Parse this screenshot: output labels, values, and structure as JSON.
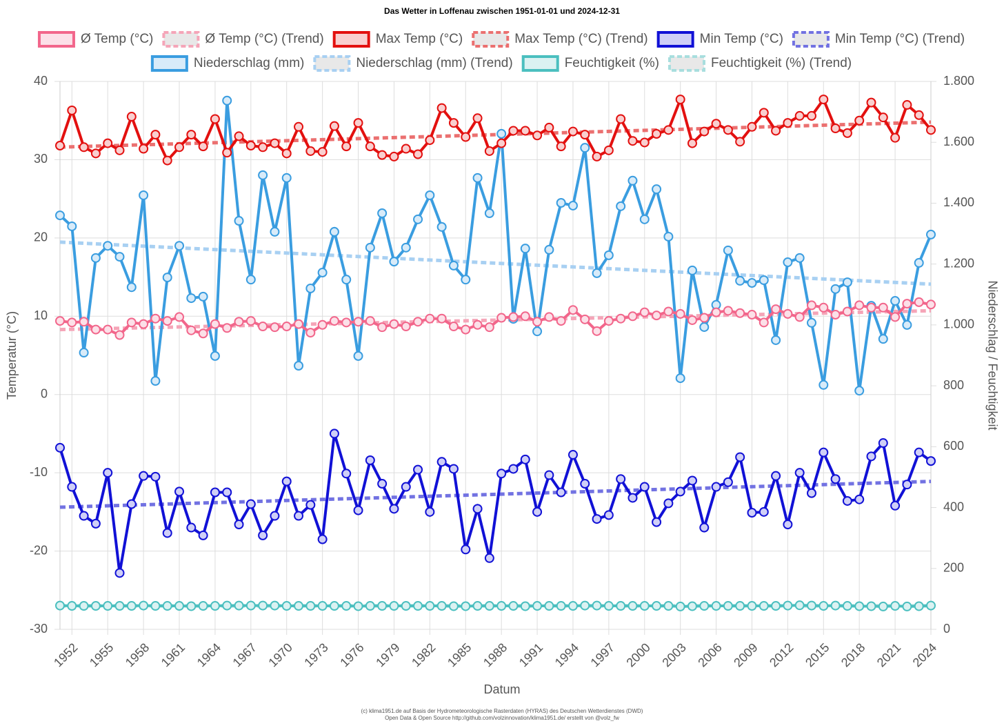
{
  "chart_data": {
    "type": "line",
    "title": "Das Wetter in Loffenau zwischen 1951-01-01 und 2024-12-31",
    "x_label": "Datum",
    "y_label": "Temperatur (°C)",
    "y2_label": "Niederschlag / Feuchtigkeit",
    "footer": [
      "(c) klima1951.de auf Basis der Hydrometeorologische Rasterdaten (HYRAS) des Deutschen Wetterdienstes (DWD)",
      "Open Data & Open Source http://github.com/volzinnovation/klima1951.de/ erstellt von @volz_fw"
    ],
    "x": [
      1951,
      1952,
      1953,
      1954,
      1955,
      1956,
      1957,
      1958,
      1959,
      1960,
      1961,
      1962,
      1963,
      1964,
      1965,
      1966,
      1967,
      1968,
      1969,
      1970,
      1971,
      1972,
      1973,
      1974,
      1975,
      1976,
      1977,
      1978,
      1979,
      1980,
      1981,
      1982,
      1983,
      1984,
      1985,
      1986,
      1987,
      1988,
      1989,
      1990,
      1991,
      1992,
      1993,
      1994,
      1995,
      1996,
      1997,
      1998,
      1999,
      2000,
      2001,
      2002,
      2003,
      2004,
      2005,
      2006,
      2007,
      2008,
      2009,
      2010,
      2011,
      2012,
      2013,
      2014,
      2015,
      2016,
      2017,
      2018,
      2019,
      2020,
      2021,
      2022,
      2023,
      2024
    ],
    "xlim": [
      1951,
      2024
    ],
    "xticks": [
      1952,
      1955,
      1958,
      1961,
      1964,
      1967,
      1970,
      1973,
      1976,
      1979,
      1982,
      1985,
      1988,
      1991,
      1994,
      1997,
      2000,
      2003,
      2006,
      2009,
      2012,
      2015,
      2018,
      2021,
      2024
    ],
    "ylim": [
      -30,
      40
    ],
    "yticks": [
      -30,
      -20,
      -10,
      0,
      10,
      20,
      30,
      40
    ],
    "y2lim": [
      0,
      1800
    ],
    "y2ticks": [
      0,
      200,
      400,
      600,
      800,
      {
        "value": 1000,
        "label": "1.000"
      },
      {
        "value": 1200,
        "label": "1.200"
      },
      {
        "value": 1400,
        "label": "1.400"
      },
      {
        "value": 1600,
        "label": "1.600"
      },
      {
        "value": 1800,
        "label": "1.800"
      }
    ],
    "grid": true,
    "legend": "top",
    "series": [
      {
        "name": "Ø Temp (°C)",
        "color": "#f2668b",
        "values": [
          9.4,
          9.2,
          9.3,
          8.3,
          8.3,
          7.6,
          9.2,
          9.0,
          9.7,
          9.4,
          9.9,
          8.2,
          7.8,
          9.0,
          8.5,
          9.3,
          9.4,
          8.7,
          8.6,
          8.7,
          9.0,
          7.9,
          8.9,
          9.4,
          9.2,
          9.3,
          9.4,
          8.6,
          9.0,
          8.7,
          9.3,
          9.7,
          9.7,
          8.7,
          8.3,
          8.9,
          8.6,
          9.8,
          9.9,
          10.0,
          9.3,
          9.9,
          9.4,
          10.8,
          9.6,
          8.1,
          9.4,
          9.7,
          10.0,
          10.5,
          10.1,
          10.6,
          10.3,
          9.5,
          9.8,
          10.5,
          10.7,
          10.4,
          10.2,
          9.2,
          10.9,
          10.3,
          9.9,
          11.4,
          11.1,
          10.2,
          10.6,
          11.4,
          11.1,
          11.1,
          9.9,
          11.6,
          11.8,
          11.5
        ]
      },
      {
        "name": "Ø Temp (°C) (Trend)",
        "color": "#f5a5b8",
        "dashed": true,
        "x": [
          1951,
          2024
        ],
        "values": [
          8.3,
          10.7
        ]
      },
      {
        "name": "Max Temp (°C)",
        "color": "#e3100f",
        "values": [
          31.8,
          36.3,
          31.6,
          30.8,
          32.1,
          31.2,
          35.5,
          31.4,
          33.2,
          29.9,
          31.6,
          33.2,
          31.7,
          35.2,
          30.9,
          33.0,
          31.8,
          31.6,
          32.1,
          30.8,
          34.2,
          31.1,
          31.0,
          34.3,
          31.7,
          34.7,
          31.7,
          30.6,
          30.4,
          31.4,
          30.7,
          32.5,
          36.6,
          34.7,
          32.9,
          35.3,
          31.1,
          32.1,
          33.7,
          33.7,
          33.1,
          34.1,
          31.7,
          33.6,
          33.2,
          30.4,
          31.2,
          35.2,
          32.4,
          32.2,
          33.3,
          33.8,
          37.7,
          32.1,
          33.6,
          34.6,
          33.8,
          32.3,
          34.2,
          36.0,
          33.7,
          34.7,
          35.6,
          35.6,
          37.7,
          34.0,
          33.4,
          35.0,
          37.3,
          35.4,
          32.8,
          37.0,
          35.7,
          33.8
        ]
      },
      {
        "name": "Max Temp (°C) (Trend)",
        "color": "#eb7070",
        "dashed": true,
        "x": [
          1951,
          2024
        ],
        "values": [
          31.6,
          34.8
        ]
      },
      {
        "name": "Min Temp (°C)",
        "color": "#1111d6",
        "values": [
          -6.8,
          -11.8,
          -15.5,
          -16.5,
          -10.0,
          -22.8,
          -14.0,
          -10.4,
          -10.5,
          -17.7,
          -12.4,
          -17.0,
          -18.0,
          -12.5,
          -12.5,
          -16.6,
          -14.0,
          -18.0,
          -15.5,
          -11.1,
          -15.5,
          -14.1,
          -18.5,
          -5.0,
          -10.1,
          -14.8,
          -8.4,
          -11.4,
          -14.6,
          -11.8,
          -9.6,
          -15.0,
          -8.6,
          -9.5,
          -19.8,
          -14.6,
          -20.9,
          -10.1,
          -9.5,
          -8.3,
          -15.0,
          -10.3,
          -12.5,
          -7.7,
          -11.4,
          -15.9,
          -15.4,
          -10.8,
          -13.2,
          -11.8,
          -16.3,
          -13.9,
          -12.4,
          -11.0,
          -17.0,
          -11.8,
          -11.2,
          -8.0,
          -15.1,
          -15.0,
          -10.4,
          -16.6,
          -10.0,
          -12.6,
          -7.4,
          -10.8,
          -13.6,
          -13.4,
          -7.9,
          -6.2,
          -14.2,
          -11.5,
          -7.4,
          -8.5
        ]
      },
      {
        "name": "Min Temp (°C) (Trend)",
        "color": "#7272e2",
        "dashed": true,
        "x": [
          1951,
          2024
        ],
        "values": [
          -14.4,
          -11.1
        ]
      },
      {
        "name": "Niederschlag (mm)",
        "color": "#3a9de0",
        "axis": "y2",
        "values": [
          1360,
          1324,
          909,
          1220,
          1260,
          1224,
          1124,
          1426,
          816,
          1156,
          1260,
          1088,
          1093,
          898,
          1737,
          1342,
          1149,
          1492,
          1306,
          1483,
          866,
          1120,
          1172,
          1306,
          1149,
          898,
          1254,
          1367,
          1208,
          1254,
          1347,
          1426,
          1322,
          1195,
          1149,
          1483,
          1367,
          1628,
          1020,
          1251,
          979,
          1247,
          1401,
          1392,
          1582,
          1170,
          1229,
          1390,
          1474,
          1347,
          1446,
          1290,
          825,
          1179,
          993,
          1066,
          1245,
          1145,
          1138,
          1147,
          950,
          1206,
          1220,
          1007,
          803,
          1118,
          1140,
          784,
          1063,
          954,
          1079,
          1000,
          1204,
          1297
        ]
      },
      {
        "name": "Niederschlag (mm) (Trend)",
        "color": "#a8d0f2",
        "dashed": true,
        "axis": "y2",
        "x": [
          1951,
          2024
        ],
        "values": [
          1272,
          1134
        ]
      },
      {
        "name": "Feuchtigkeit (%)",
        "color": "#4bbfbf",
        "axis": "y2",
        "values": [
          78,
          77,
          77,
          77,
          77,
          77,
          77,
          78,
          77,
          77,
          77,
          76,
          77,
          77,
          78,
          78,
          78,
          78,
          78,
          77,
          77,
          77,
          77,
          77,
          77,
          76,
          77,
          77,
          77,
          77,
          77,
          77,
          77,
          76,
          76,
          77,
          77,
          77,
          77,
          76,
          77,
          77,
          77,
          77,
          78,
          78,
          77,
          77,
          77,
          77,
          77,
          77,
          75,
          76,
          77,
          77,
          77,
          77,
          77,
          77,
          77,
          78,
          79,
          78,
          77,
          78,
          77,
          76,
          76,
          75,
          77,
          75,
          76,
          78
        ]
      },
      {
        "name": "Feuchtigkeit (%) (Trend)",
        "color": "#a8dede",
        "dashed": true,
        "axis": "y2",
        "x": [
          1951,
          2024
        ],
        "values": [
          77,
          77
        ]
      }
    ]
  }
}
